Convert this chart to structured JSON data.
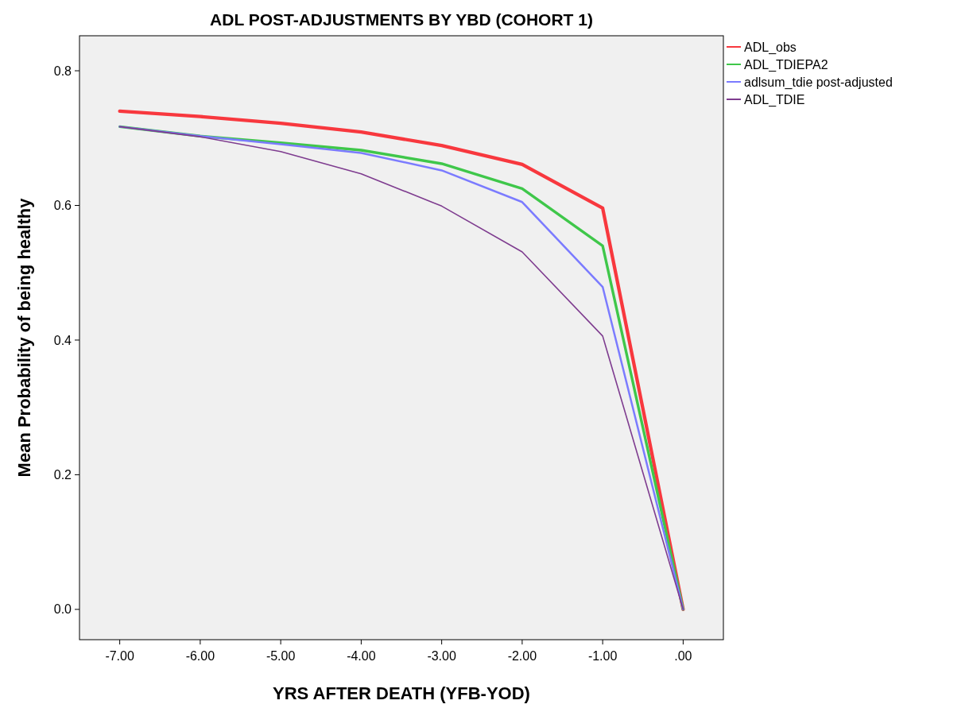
{
  "chart_data": {
    "type": "line",
    "title": "ADL POST-ADJUSTMENTS BY YBD (COHORT 1)",
    "xlabel": "YRS AFTER DEATH (YFB-YOD)",
    "ylabel": "Mean Probability of being healthy",
    "categories": [
      "-7.00",
      "-6.00",
      "-5.00",
      "-4.00",
      "-3.00",
      "-2.00",
      "-1.00",
      ".00"
    ],
    "series": [
      {
        "name": "ADL_obs",
        "color": "#f8383e",
        "values": [
          0.74,
          0.732,
          0.722,
          0.709,
          0.689,
          0.661,
          0.596,
          0.0
        ]
      },
      {
        "name": "ADL_TDIEPA2",
        "color": "#3fc74a",
        "values": [
          0.717,
          0.703,
          0.693,
          0.682,
          0.662,
          0.625,
          0.54,
          0.0
        ]
      },
      {
        "name": "adlsum_tdie post-adjusted",
        "color": "#7b7bff",
        "values": [
          0.717,
          0.703,
          0.691,
          0.678,
          0.652,
          0.605,
          0.479,
          0.0
        ]
      },
      {
        "name": "ADL_TDIE",
        "color": "#7e3c8f",
        "values": [
          0.717,
          0.702,
          0.68,
          0.647,
          0.599,
          0.531,
          0.406,
          0.0
        ]
      }
    ],
    "ylim": [
      -0.045,
      0.852
    ],
    "yticks": [
      {
        "value": 0,
        "label": "0.0"
      },
      {
        "value": 0.2,
        "label": "0.2"
      },
      {
        "value": 0.4,
        "label": "0.4"
      },
      {
        "value": 0.6,
        "label": "0.6"
      },
      {
        "value": 0.8,
        "label": "0.8"
      }
    ],
    "legend": "top right",
    "grid": false,
    "marker": "none",
    "line_style": "solid"
  }
}
